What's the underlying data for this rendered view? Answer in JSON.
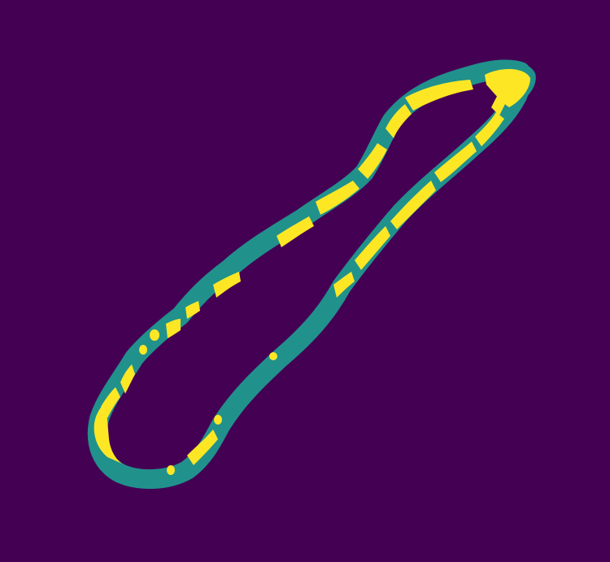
{
  "image": {
    "kind": "segmentation mask",
    "colors": {
      "background": "#440154",
      "outer_ring": "#21918c",
      "inner_band": "#fde725"
    }
  }
}
